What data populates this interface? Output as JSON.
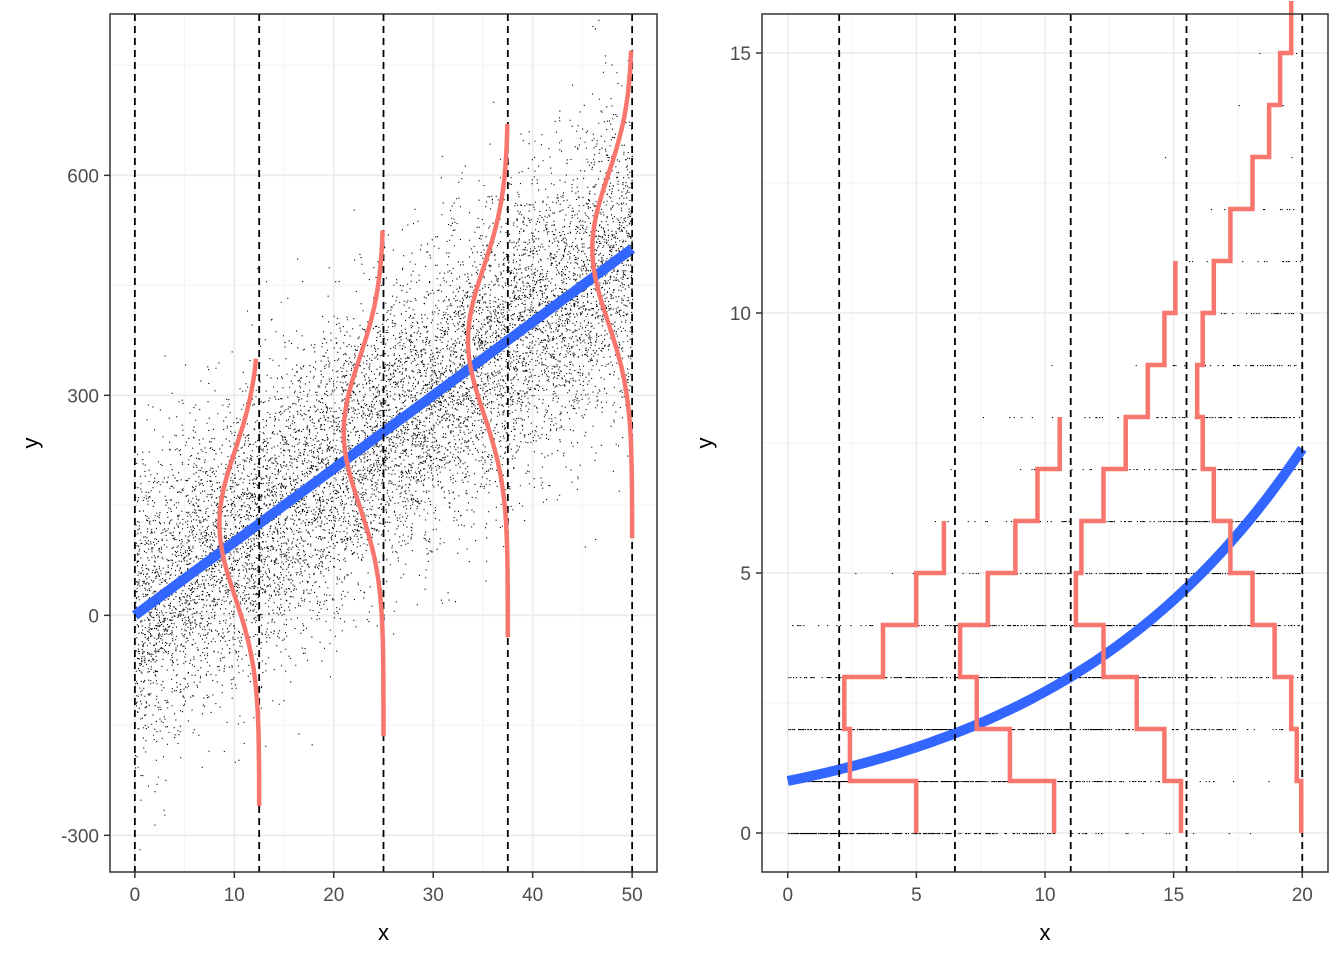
{
  "colors": {
    "panel_background": "#ffffff",
    "panel_border": "#333333",
    "grid_major": "#ebebeb",
    "grid_minor": "#f5f5f5",
    "points": "#000000",
    "fit_line": "#3366ff",
    "density_curve": "#f8766d",
    "cut_lines": "#000000"
  },
  "chart_data": [
    {
      "type": "scatter",
      "theme": "bw",
      "grid": true,
      "xlabel": "x",
      "ylabel": "y",
      "xlim": [
        -2.5,
        52.5
      ],
      "ylim": [
        -350,
        820
      ],
      "x_ticks": [
        0,
        10,
        20,
        30,
        40,
        50
      ],
      "y_ticks": [
        -300,
        0,
        300,
        600
      ],
      "x_tick_labels": [
        "0",
        "10",
        "20",
        "30",
        "40",
        "50"
      ],
      "y_tick_labels": [
        "-300",
        "0",
        "300",
        "600"
      ],
      "scatter_model": {
        "n": 10000,
        "x_range": [
          0,
          50
        ],
        "intercept": 0,
        "slope": 10,
        "sd": 100
      },
      "fit_line": {
        "type": "linear",
        "intercept": 0,
        "slope": 10,
        "x_range": [
          0,
          50
        ]
      },
      "vertical_lines": [
        0,
        12.5,
        25,
        37.5,
        50
      ],
      "density_curves": [
        {
          "anchor_x": 12.5,
          "center_y": 125,
          "sd": 100,
          "y_range": [
            -260,
            350
          ],
          "width": 4
        },
        {
          "anchor_x": 25,
          "center_y": 250,
          "sd": 100,
          "y_range": [
            -165,
            525
          ],
          "width": 4
        },
        {
          "anchor_x": 37.5,
          "center_y": 375,
          "sd": 100,
          "y_range": [
            -30,
            670
          ],
          "width": 4
        },
        {
          "anchor_x": 50,
          "center_y": 500,
          "sd": 100,
          "y_range": [
            105,
            770
          ],
          "width": 4
        }
      ]
    },
    {
      "type": "scatter",
      "theme": "bw",
      "grid": true,
      "xlabel": "x",
      "ylabel": "y",
      "xlim": [
        -1,
        21
      ],
      "ylim": [
        -0.75,
        15.75
      ],
      "x_ticks": [
        0,
        5,
        10,
        15,
        20
      ],
      "y_ticks": [
        0,
        5,
        10,
        15
      ],
      "x_tick_labels": [
        "0",
        "5",
        "10",
        "15",
        "20"
      ],
      "y_tick_labels": [
        "0",
        "5",
        "10",
        "15"
      ],
      "scatter_model": {
        "n": 3000,
        "x_range": [
          0,
          20
        ],
        "distribution": "poisson",
        "mean_formula": "exp(0.1 * x)"
      },
      "fit_line": {
        "type": "exponential",
        "formula": "exp(0.1 * x)",
        "x_range": [
          0,
          20
        ]
      },
      "vertical_lines": [
        2,
        6.5,
        11,
        15.5,
        20
      ],
      "step_distributions": [
        {
          "anchor_x": 6.5,
          "width": 4.3,
          "values": [
            0.35,
            0.95,
            1.0,
            0.65,
            0.35,
            0.1
          ]
        },
        {
          "anchor_x": 11,
          "width": 4.3,
          "values": [
            0.15,
            0.55,
            0.85,
            1.0,
            0.75,
            0.5,
            0.3,
            0.1
          ]
        },
        {
          "anchor_x": 15.5,
          "width": 4.3,
          "values": [
            0.05,
            0.2,
            0.45,
            0.75,
            1.0,
            0.95,
            0.75,
            0.55,
            0.35,
            0.2,
            0.1
          ]
        },
        {
          "anchor_x": 20,
          "width": 4.3,
          "values": [
            0.01,
            0.05,
            0.1,
            0.25,
            0.45,
            0.65,
            0.8,
            0.9,
            0.95,
            0.9,
            0.8,
            0.65,
            0.45,
            0.3,
            0.2,
            0.1
          ]
        }
      ]
    }
  ]
}
